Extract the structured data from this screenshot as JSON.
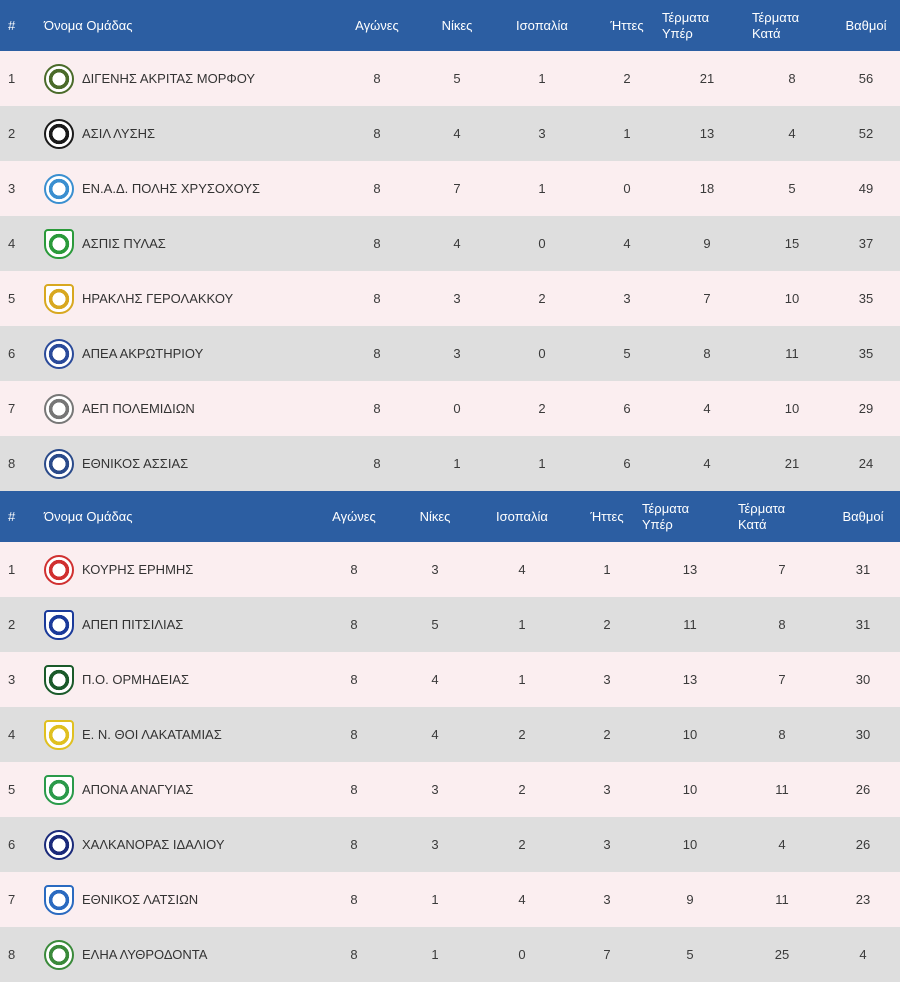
{
  "columns": {
    "pos": "#",
    "team": "Όνομα Ομάδας",
    "played": "Αγώνες",
    "wins": "Νίκες",
    "draws": "Ισοπαλία",
    "losses": "Ήττες",
    "gf_line1": "Τέρματα",
    "gf_line2": "Υπέρ",
    "ga_line1": "Τέρματα",
    "ga_line2": "Κατά",
    "points": "Βαθμοί"
  },
  "colors": {
    "header_bg": "#2c5ea2",
    "row_light": "#fbeef0",
    "row_dark": "#dedede"
  },
  "groups": [
    {
      "rows": [
        {
          "pos": "1",
          "team": "ΔΙΓΕΝΗΣ ΑΚΡΙΤΑΣ ΜΟΡΦΟΥ",
          "logo_color": "#4a6b2a",
          "played": "8",
          "wins": "5",
          "draws": "1",
          "losses": "2",
          "gf": "21",
          "ga": "8",
          "points": "56"
        },
        {
          "pos": "2",
          "team": "ΑΣΙΛ ΛΥΣΗΣ",
          "logo_color": "#1a1a1a",
          "played": "8",
          "wins": "4",
          "draws": "3",
          "losses": "1",
          "gf": "13",
          "ga": "4",
          "points": "52"
        },
        {
          "pos": "3",
          "team": "ΕΝ.Α.Δ. ΠΟΛΗΣ ΧΡΥΣΟΧΟΥΣ",
          "logo_color": "#3a8fd0",
          "played": "8",
          "wins": "7",
          "draws": "1",
          "losses": "0",
          "gf": "18",
          "ga": "5",
          "points": "49"
        },
        {
          "pos": "4",
          "team": "ΑΣΠΙΣ ΠΥΛΑΣ",
          "logo_color": "#2a9a3a",
          "played": "8",
          "wins": "4",
          "draws": "0",
          "losses": "4",
          "gf": "9",
          "ga": "15",
          "points": "37"
        },
        {
          "pos": "5",
          "team": "ΗΡΑΚΛΗΣ ΓΕΡΟΛΑΚΚΟΥ",
          "logo_color": "#d8a820",
          "played": "8",
          "wins": "3",
          "draws": "2",
          "losses": "3",
          "gf": "7",
          "ga": "10",
          "points": "35"
        },
        {
          "pos": "6",
          "team": "ΑΠΕΑ ΑΚΡΩΤΗΡΙΟΥ",
          "logo_color": "#2a4a9a",
          "played": "8",
          "wins": "3",
          "draws": "0",
          "losses": "5",
          "gf": "8",
          "ga": "11",
          "points": "35"
        },
        {
          "pos": "7",
          "team": "ΑΕΠ ΠΟΛΕΜΙΔΙΩΝ",
          "logo_color": "#777777",
          "played": "8",
          "wins": "0",
          "draws": "2",
          "losses": "6",
          "gf": "4",
          "ga": "10",
          "points": "29"
        },
        {
          "pos": "8",
          "team": "ΕΘΝΙΚΟΣ ΑΣΣΙΑΣ",
          "logo_color": "#2a4a8a",
          "played": "8",
          "wins": "1",
          "draws": "1",
          "losses": "6",
          "gf": "4",
          "ga": "21",
          "points": "24"
        }
      ]
    },
    {
      "rows": [
        {
          "pos": "1",
          "team": "ΚΟΥΡΗΣ ΕΡΗΜΗΣ",
          "logo_color": "#d03030",
          "played": "8",
          "wins": "3",
          "draws": "4",
          "losses": "1",
          "gf": "13",
          "ga": "7",
          "points": "31"
        },
        {
          "pos": "2",
          "team": "ΑΠΕΠ ΠΙΤΣΙΛΙΑΣ",
          "logo_color": "#1a3a9a",
          "played": "8",
          "wins": "5",
          "draws": "1",
          "losses": "2",
          "gf": "11",
          "ga": "8",
          "points": "31"
        },
        {
          "pos": "3",
          "team": "Π.Ο. ΟΡΜΗΔΕΙΑΣ",
          "logo_color": "#1a5a2a",
          "played": "8",
          "wins": "4",
          "draws": "1",
          "losses": "3",
          "gf": "13",
          "ga": "7",
          "points": "30"
        },
        {
          "pos": "4",
          "team": "Ε. Ν. ΘΟΙ ΛΑΚΑΤΑΜΙΑΣ",
          "logo_color": "#e0c020",
          "played": "8",
          "wins": "4",
          "draws": "2",
          "losses": "2",
          "gf": "10",
          "ga": "8",
          "points": "30"
        },
        {
          "pos": "5",
          "team": "ΑΠΟΝΑ ΑΝΑΓΥΙΑΣ",
          "logo_color": "#2a9a4a",
          "played": "8",
          "wins": "3",
          "draws": "2",
          "losses": "3",
          "gf": "10",
          "ga": "11",
          "points": "26"
        },
        {
          "pos": "6",
          "team": "ΧΑΛΚΑΝΟΡΑΣ ΙΔΑΛΙΟΥ",
          "logo_color": "#1a2a7a",
          "played": "8",
          "wins": "3",
          "draws": "2",
          "losses": "3",
          "gf": "10",
          "ga": "4",
          "points": "26"
        },
        {
          "pos": "7",
          "team": "ΕΘΝΙΚΟΣ ΛΑΤΣΙΩΝ",
          "logo_color": "#2a6ac0",
          "played": "8",
          "wins": "1",
          "draws": "4",
          "losses": "3",
          "gf": "9",
          "ga": "11",
          "points": "23"
        },
        {
          "pos": "8",
          "team": "ΕΛΗΑ ΛΥΘΡΟΔΟΝΤΑ",
          "logo_color": "#3a8a3a",
          "played": "8",
          "wins": "1",
          "draws": "0",
          "losses": "7",
          "gf": "5",
          "ga": "25",
          "points": "4"
        }
      ]
    }
  ]
}
